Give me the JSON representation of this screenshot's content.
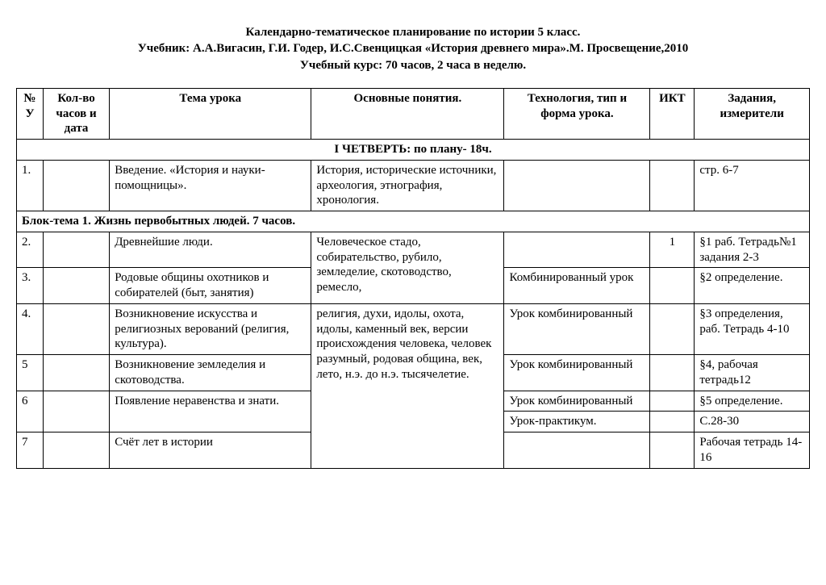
{
  "title": {
    "line1": "Календарно-тематическое планирование по истории 5 класс.",
    "line2": "Учебник: А.А.Вигасин, Г.И. Годер, И.С.Свенцицкая «История древнего мира».М. Просвещение,2010",
    "line3": "Учебный курс: 70 часов, 2 часа в неделю."
  },
  "headers": {
    "num": "№ У",
    "hours": "Кол-во часов и дата",
    "topic": "Тема урока",
    "concepts": "Основные понятия.",
    "tech": "Технология, тип и форма урока.",
    "ikt": "ИКТ",
    "tasks": "Задания, измерители"
  },
  "quarter": "I ЧЕТВЕРТЬ: по плану- 18ч.",
  "row1": {
    "num": "1.",
    "topic": "Введение. «История и науки-помощницы».",
    "concepts": "История, исторические источники, археология, этнография, хронология.",
    "tasks": "стр. 6-7"
  },
  "block1": "Блок-тема 1. Жизнь первобытных людей. 7 часов.",
  "r2": {
    "num": "2.",
    "topic": "Древнейшие люди.",
    "ikt": "1",
    "tasks": "§1  раб. Тетрадь№1 задания 2-3"
  },
  "concepts_2_3": "Человеческое стадо, собирательство, рубило, земледелие, скотоводство, ремесло,",
  "r3": {
    "num": "3.",
    "topic": "Родовые общины охотников и собирателей (быт, занятия)",
    "tech": "Комбинированный урок",
    "tasks": "§2 определение."
  },
  "r4": {
    "num": "4.",
    "topic": "Возникновение искусства и религиозных верований (религия, культура).",
    "tech": "Урок комбинированный",
    "tasks": "§3 определения, раб. Тетрадь 4-10"
  },
  "concepts_4_7": "религия, духи, идолы, охота, идолы,  каменный век, версии происхождения человека, человек разумный, родовая община, век, лето, н.э. до н.э. тысячелетие.",
  "r5": {
    "num": "5",
    "topic": "Возникновение земледелия и скотоводства.",
    "tech": "Урок комбинированный",
    "tasks": "§4, рабочая тетрадь12"
  },
  "r6a": {
    "tech": "Урок комбинированный",
    "tasks": "§5 определение."
  },
  "r6": {
    "num": "6",
    "topic": "Появление неравенства и знати.",
    "tech": "Урок-практикум.",
    "tasks": "С.28-30"
  },
  "r7": {
    "num": "7",
    "topic": "Счёт лет в истории",
    "tasks": "Рабочая тетрадь 14-16"
  }
}
